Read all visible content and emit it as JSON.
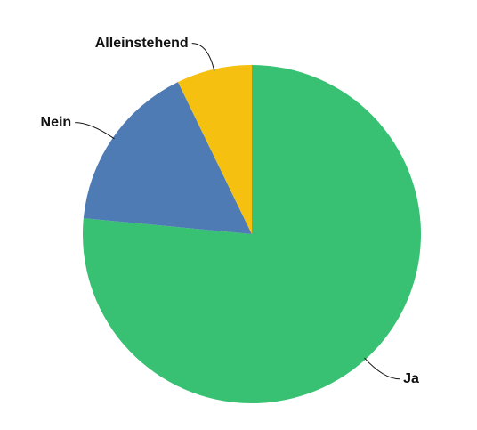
{
  "chart_data": {
    "type": "pie",
    "categories": [
      "Ja",
      "Nein",
      "Alleinstehend"
    ],
    "values": [
      76.5,
      16.3,
      7.2
    ],
    "colors": [
      "#38c172",
      "#4f7bb5",
      "#f5c00f"
    ]
  }
}
